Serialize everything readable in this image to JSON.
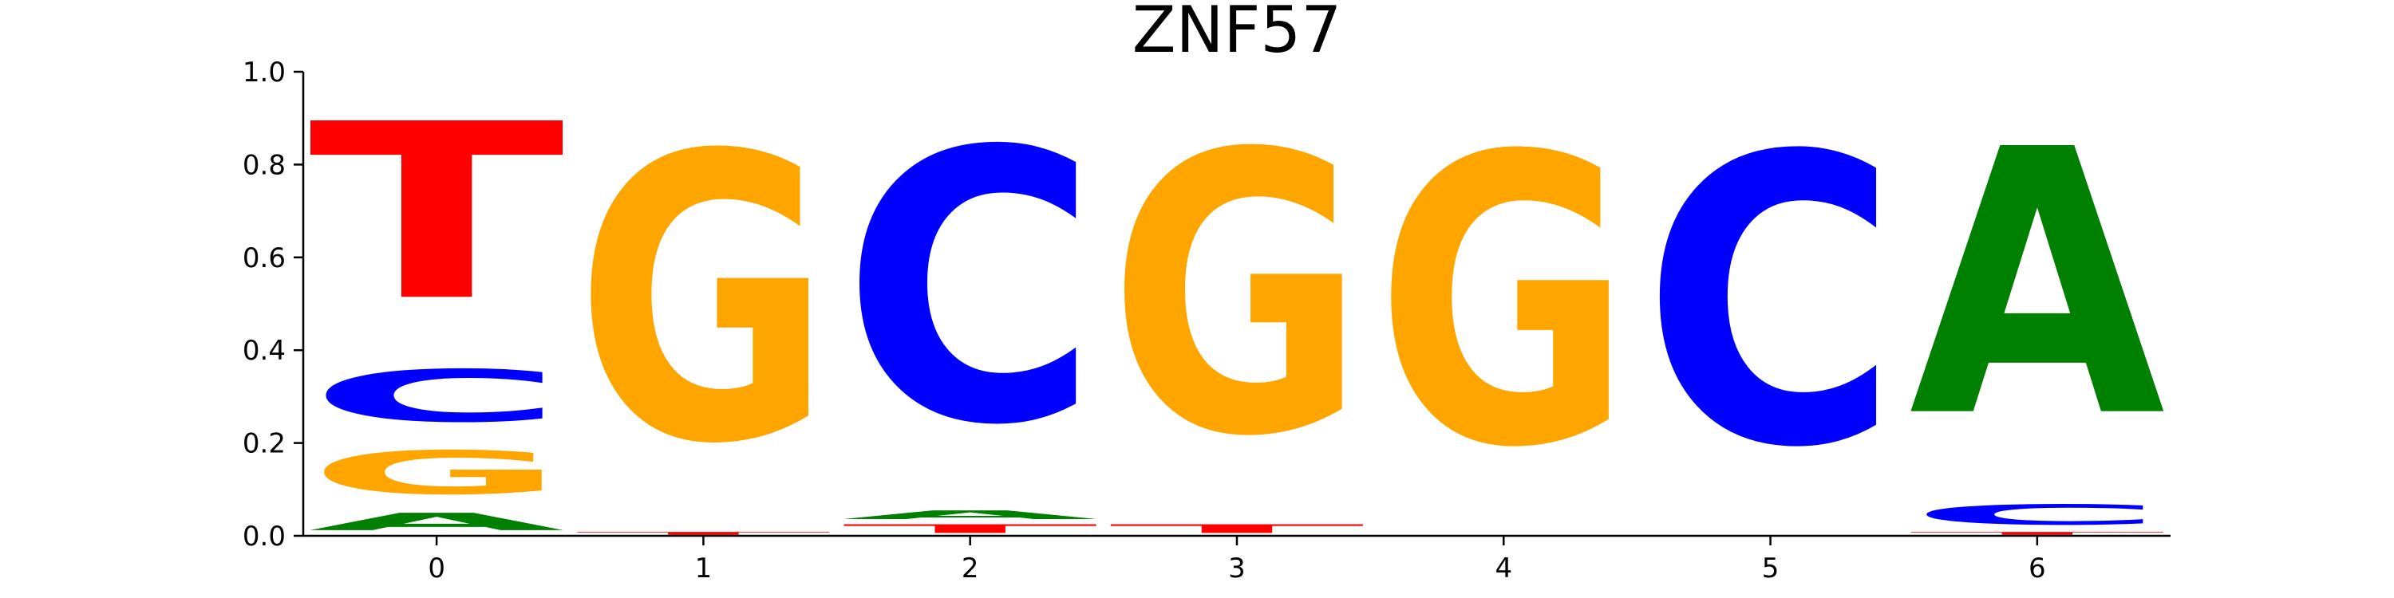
{
  "chart_data": {
    "type": "sequence-logo",
    "title": "ZNF57",
    "xlabel": "",
    "ylabel": "",
    "ylim": [
      0,
      1.0
    ],
    "x_ticks": [
      "0",
      "1",
      "2",
      "3",
      "4",
      "5",
      "6"
    ],
    "y_ticks": [
      "0.0",
      "0.2",
      "0.4",
      "0.6",
      "0.8",
      "1.0"
    ],
    "letter_colors": {
      "A": "#008000",
      "C": "#0000ff",
      "G": "#ffa500",
      "T": "#ff0000"
    },
    "positions": [
      {
        "pos": "0",
        "stack": [
          {
            "base": "A",
            "value": 0.06
          },
          {
            "base": "G",
            "value": 0.15
          },
          {
            "base": "C",
            "value": 0.18
          },
          {
            "base": "T",
            "value": 0.61
          }
        ]
      },
      {
        "pos": "1",
        "stack": [
          {
            "base": "T",
            "value": 0.01
          },
          {
            "base": "G",
            "value": 0.99
          }
        ]
      },
      {
        "pos": "2",
        "stack": [
          {
            "base": "T",
            "value": 0.03
          },
          {
            "base": "A",
            "value": 0.03
          },
          {
            "base": "C",
            "value": 0.94
          }
        ]
      },
      {
        "pos": "3",
        "stack": [
          {
            "base": "T",
            "value": 0.03
          },
          {
            "base": "G",
            "value": 0.97
          }
        ]
      },
      {
        "pos": "4",
        "stack": [
          {
            "base": "G",
            "value": 1.0
          }
        ]
      },
      {
        "pos": "5",
        "stack": [
          {
            "base": "C",
            "value": 1.0
          }
        ]
      },
      {
        "pos": "6",
        "stack": [
          {
            "base": "T",
            "value": 0.01
          },
          {
            "base": "C",
            "value": 0.07
          },
          {
            "base": "A",
            "value": 0.92
          }
        ]
      }
    ]
  }
}
